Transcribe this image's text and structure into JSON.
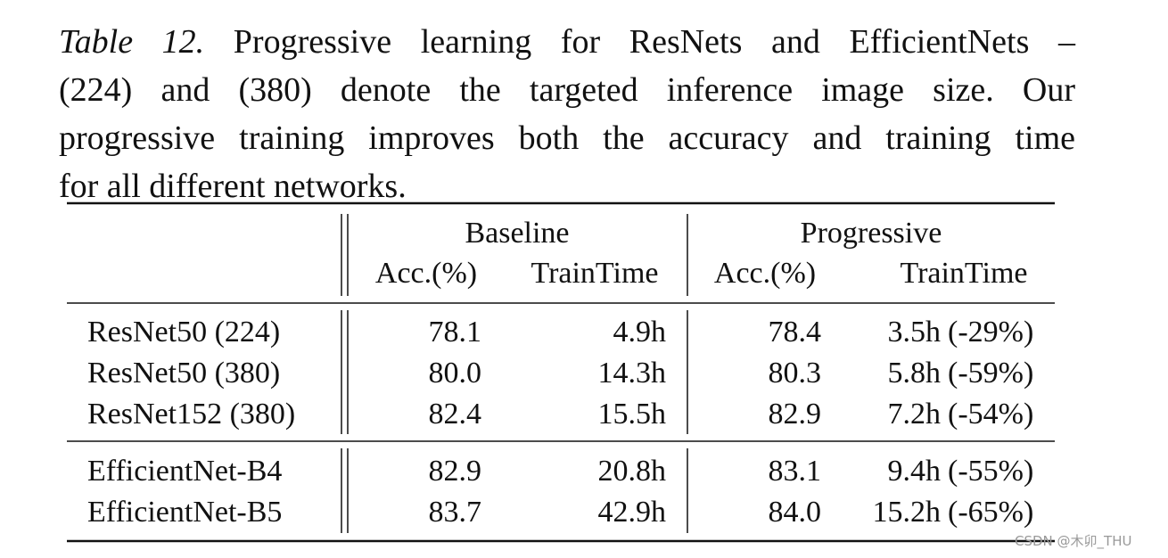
{
  "caption": {
    "label": "Table 12.",
    "lines": [
      "Progressive learning for ResNets and EfficientNets –",
      "(224) and (380) denote the targeted inference image size.  Our",
      "progressive training improves both the accuracy and training time",
      "for all different networks."
    ]
  },
  "table": {
    "groups": [
      "Baseline",
      "Progressive"
    ],
    "columns": [
      "Acc.(%)",
      "TrainTime",
      "Acc.(%)",
      "TrainTime"
    ],
    "sections": [
      [
        {
          "model": "ResNet50 (224)",
          "baseline_acc": "78.1",
          "baseline_time": "4.9h",
          "progressive_acc": "78.4",
          "progressive_time": "3.5h",
          "improvement": "(-29%)"
        },
        {
          "model": "ResNet50 (380)",
          "baseline_acc": "80.0",
          "baseline_time": "14.3h",
          "progressive_acc": "80.3",
          "progressive_time": "5.8h",
          "improvement": "(-59%)"
        },
        {
          "model": "ResNet152 (380)",
          "baseline_acc": "82.4",
          "baseline_time": "15.5h",
          "progressive_acc": "82.9",
          "progressive_time": "7.2h",
          "improvement": "(-54%)"
        }
      ],
      [
        {
          "model": "EfficientNet-B4",
          "baseline_acc": "82.9",
          "baseline_time": "20.8h",
          "progressive_acc": "83.1",
          "progressive_time": "9.4h",
          "improvement": "(-55%)"
        },
        {
          "model": "EfficientNet-B5",
          "baseline_acc": "83.7",
          "baseline_time": "42.9h",
          "progressive_acc": "84.0",
          "progressive_time": "15.2h",
          "improvement": "(-65%)"
        }
      ]
    ]
  },
  "watermark": "CSDN @木卯_THU"
}
